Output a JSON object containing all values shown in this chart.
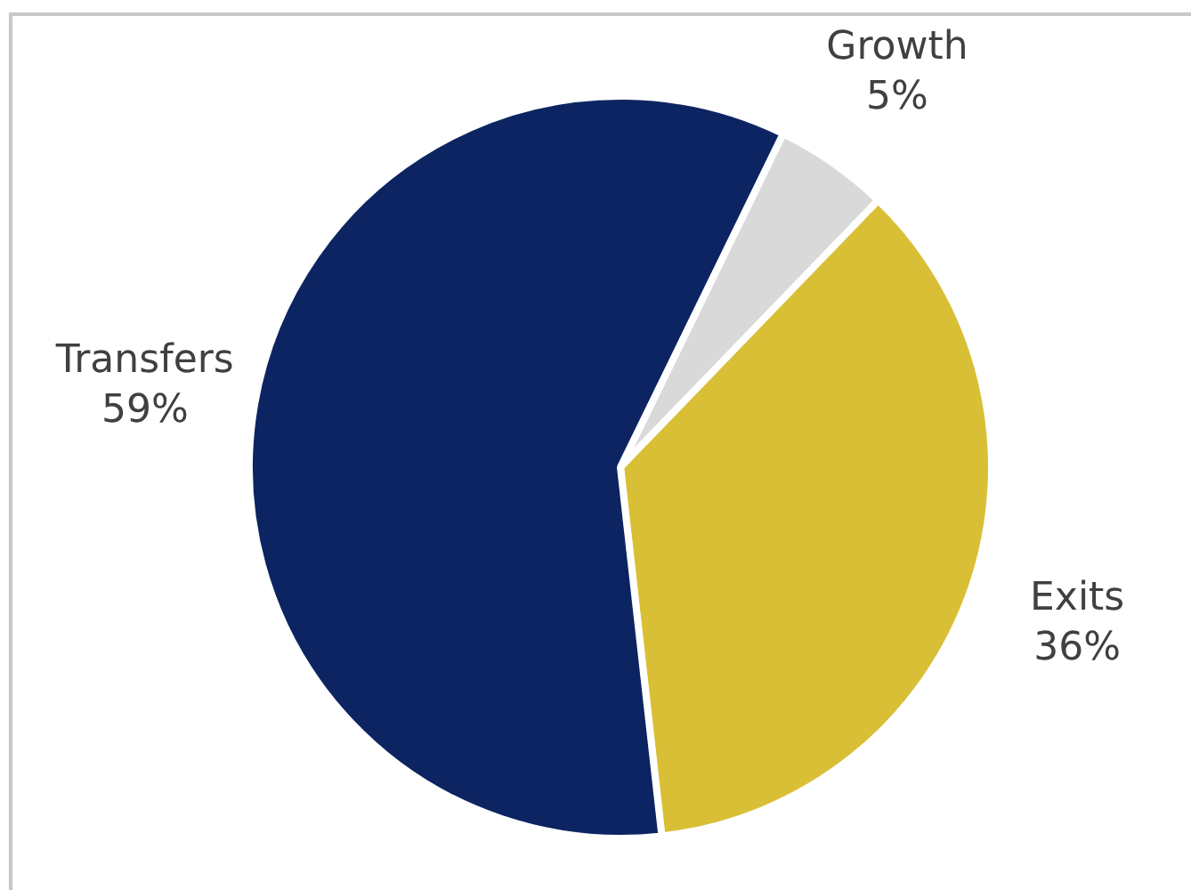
{
  "chart_data": {
    "type": "pie",
    "categories": [
      "Growth",
      "Exits",
      "Transfers"
    ],
    "values": [
      5,
      36,
      59
    ],
    "colors": [
      "#d9d9d9",
      "#d9bf35",
      "#0c2461"
    ],
    "value_labels": [
      "5%",
      "36%",
      "59%"
    ],
    "legend": false
  }
}
